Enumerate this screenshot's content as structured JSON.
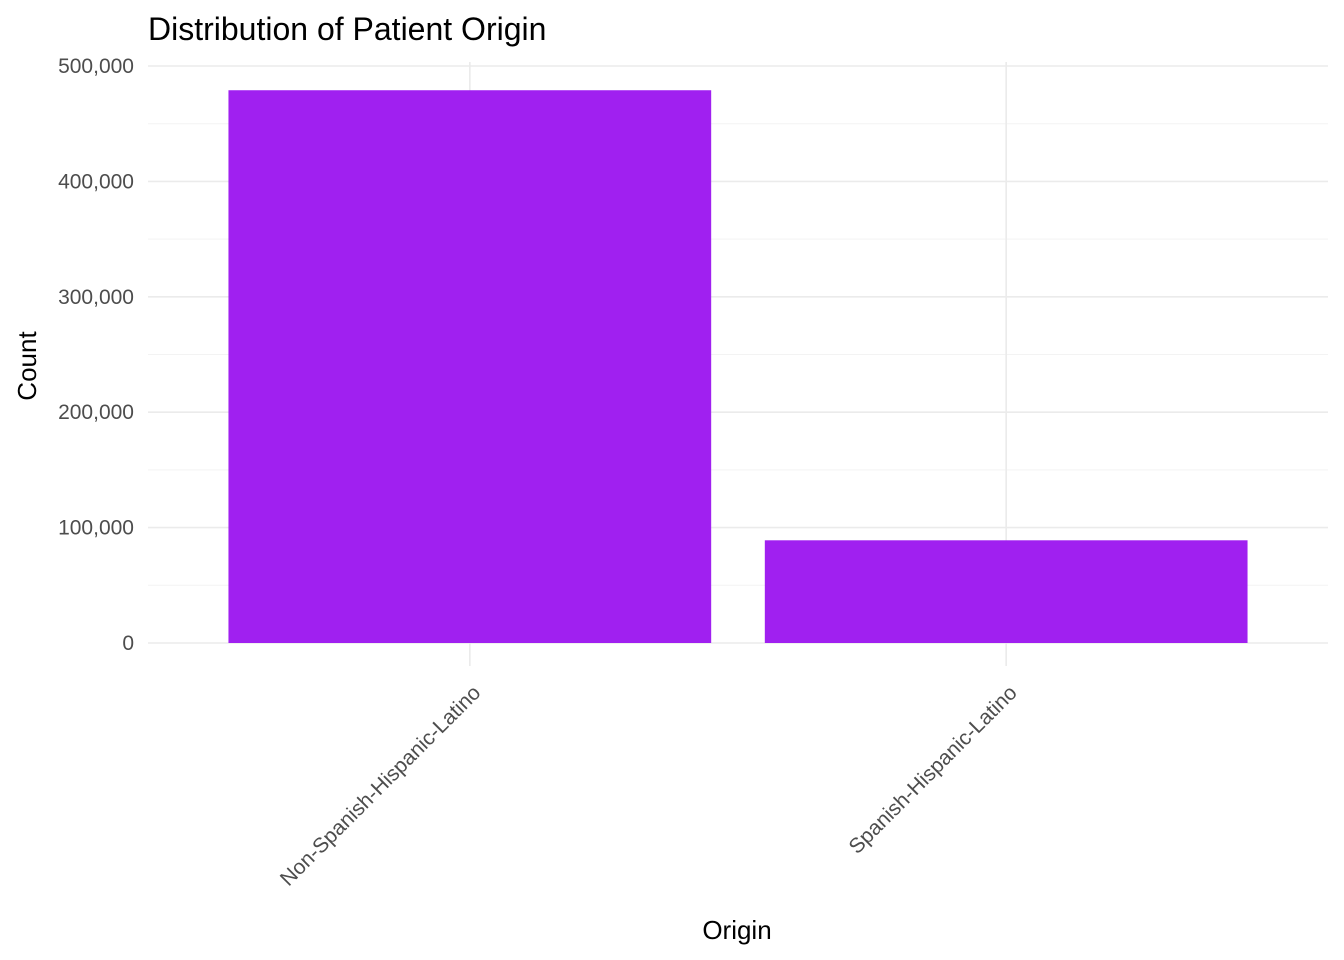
{
  "chart_data": {
    "type": "bar",
    "title": "Distribution of Patient Origin",
    "xlabel": "Origin",
    "ylabel": "Count",
    "categories": [
      "Non-Spanish-Hispanic-Latino",
      "Spanish-Hispanic-Latino"
    ],
    "values": [
      479000,
      89000
    ],
    "ylim": [
      0,
      500000
    ],
    "yticks": [
      0,
      100000,
      200000,
      300000,
      400000,
      500000
    ],
    "ytick_labels": [
      "0",
      "100,000",
      "200,000",
      "300,000",
      "400,000",
      "500,000"
    ],
    "bar_color": "#A020F0",
    "grid": true,
    "legend": "none",
    "x_tick_rotation_deg": 45
  }
}
